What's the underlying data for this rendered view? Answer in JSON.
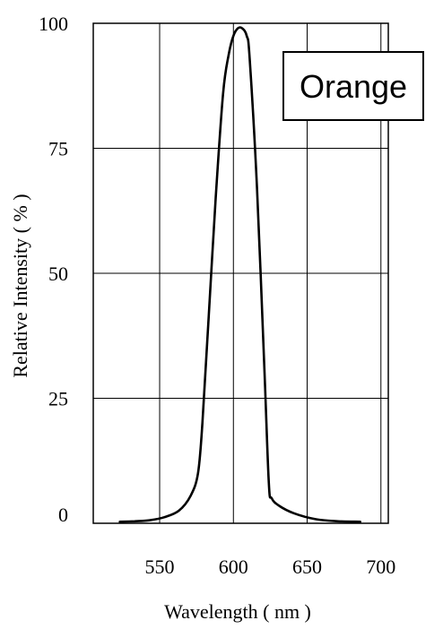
{
  "chart_data": {
    "type": "line",
    "xlabel": "Wavelength ( nm )",
    "ylabel": "Relative Intensity ( % )",
    "xlim": [
      505,
      705
    ],
    "ylim": [
      0,
      100
    ],
    "x_ticks": [
      550,
      600,
      650,
      700
    ],
    "x_tick_labels": [
      "550",
      "600",
      "650",
      "700"
    ],
    "y_ticks": [
      0,
      25,
      50,
      75,
      100
    ],
    "y_tick_labels": [
      "0",
      "25",
      "50",
      "75",
      "100"
    ],
    "grid": true,
    "legend_box": "Orange",
    "series": [
      {
        "color": "#000000",
        "x": [
          523,
          533,
          543,
          553,
          563,
          571,
          576,
          579,
          583,
          588,
          593,
          597,
          600,
          603,
          606,
          609,
          611,
          616,
          621,
          624,
          626,
          631,
          641,
          656,
          671,
          686
        ],
        "y": [
          0.3,
          0.4,
          0.6,
          1.2,
          2.5,
          5.5,
          10,
          20,
          40,
          65,
          86,
          94,
          97.5,
          99,
          99,
          97.5,
          93,
          67,
          31,
          8,
          5,
          3.5,
          2,
          0.8,
          0.4,
          0.3
        ]
      }
    ]
  }
}
